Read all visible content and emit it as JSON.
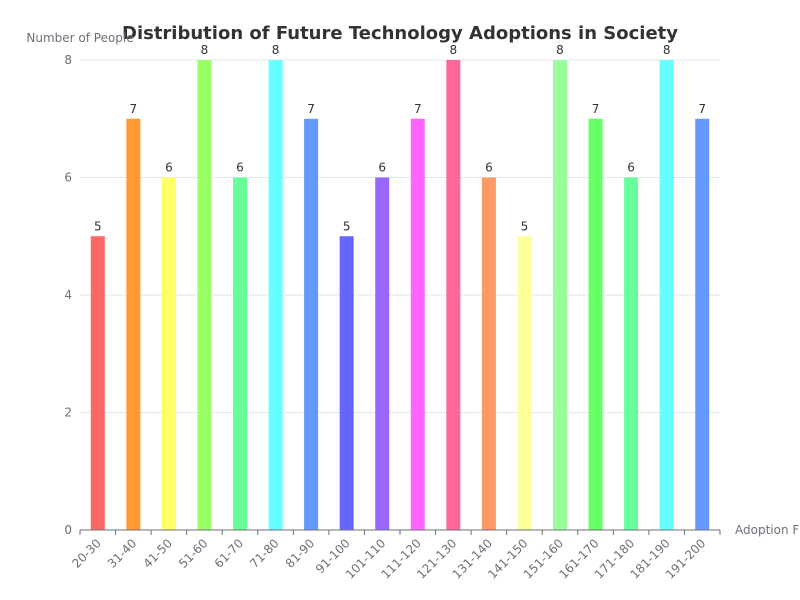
{
  "chart_data": {
    "type": "bar",
    "title": "Distribution of Future Technology Adoptions in Society",
    "xlabel": "Adoption F",
    "ylabel": "Number of People",
    "ylim": [
      0,
      8
    ],
    "yticks": [
      0,
      2,
      4,
      6,
      8
    ],
    "grid": true,
    "categories": [
      "20-30",
      "31-40",
      "41-50",
      "51-60",
      "61-70",
      "71-80",
      "81-90",
      "91-100",
      "101-110",
      "111-120",
      "121-130",
      "131-140",
      "141-150",
      "151-160",
      "161-170",
      "171-180",
      "181-190",
      "191-200"
    ],
    "values": [
      5,
      7,
      6,
      8,
      6,
      8,
      7,
      5,
      6,
      7,
      8,
      6,
      5,
      8,
      7,
      6,
      8,
      7
    ],
    "colors": [
      "#ff6666",
      "#ff9933",
      "#ffff66",
      "#99ff66",
      "#66ff99",
      "#66ffff",
      "#6699ff",
      "#6666ff",
      "#9966ff",
      "#ff66ff",
      "#ff6699",
      "#ff9966",
      "#ffff99",
      "#99ff99",
      "#66ff66",
      "#66ff99",
      "#66ffff",
      "#6699ff"
    ]
  }
}
